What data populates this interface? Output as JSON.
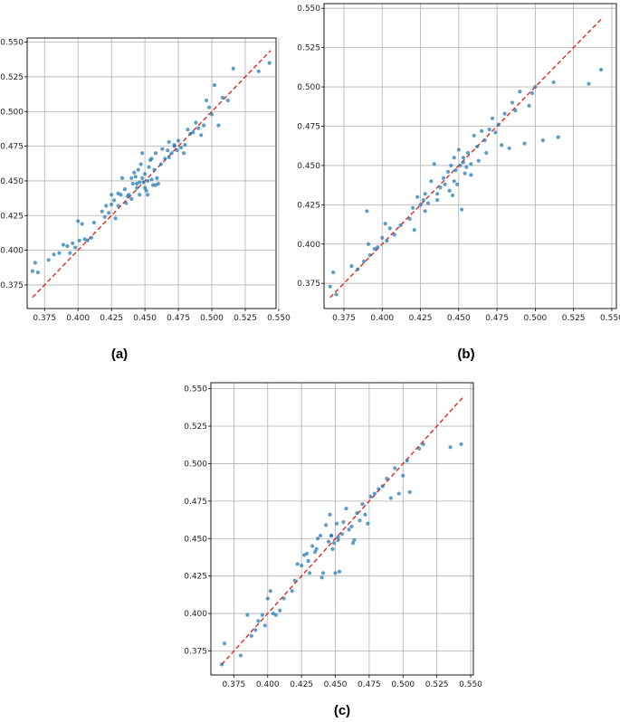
{
  "colors": {
    "points": "#1f77b4",
    "reference_line": "#e8190f",
    "grid": "#b0b0b0"
  },
  "chart_data": [
    {
      "type": "scatter",
      "panel_label": "(a)",
      "xlim": [
        0.362,
        0.548
      ],
      "ylim": [
        0.358,
        0.553
      ],
      "xticks": [
        "0.375",
        "0.400",
        "0.425",
        "0.450",
        "0.475",
        "0.500",
        "0.525",
        "0.550"
      ],
      "yticks": [
        "0.375",
        "0.400",
        "0.425",
        "0.450",
        "0.475",
        "0.500",
        "0.525",
        "0.550"
      ],
      "grid": true,
      "reference_line": {
        "style": "dashed",
        "from": [
          0.366,
          0.366
        ],
        "to": [
          0.544,
          0.544
        ]
      },
      "x": [
        0.366,
        0.368,
        0.37,
        0.378,
        0.382,
        0.386,
        0.389,
        0.392,
        0.394,
        0.396,
        0.398,
        0.4,
        0.401,
        0.403,
        0.405,
        0.407,
        0.41,
        0.412,
        0.418,
        0.42,
        0.421,
        0.423,
        0.425,
        0.427,
        0.428,
        0.43,
        0.432,
        0.433,
        0.435,
        0.437,
        0.438,
        0.44,
        0.441,
        0.442,
        0.443,
        0.444,
        0.445,
        0.446,
        0.447,
        0.448,
        0.448,
        0.449,
        0.45,
        0.451,
        0.452,
        0.453,
        0.454,
        0.455,
        0.456,
        0.457,
        0.458,
        0.459,
        0.46,
        0.462,
        0.463,
        0.465,
        0.467,
        0.468,
        0.47,
        0.472,
        0.474,
        0.475,
        0.477,
        0.479,
        0.48,
        0.482,
        0.484,
        0.486,
        0.488,
        0.49,
        0.492,
        0.494,
        0.496,
        0.498,
        0.5,
        0.502,
        0.505,
        0.508,
        0.512,
        0.516,
        0.535,
        0.543,
        0.446,
        0.45,
        0.455,
        0.44,
        0.436,
        0.468,
        0.472,
        0.43,
        0.444,
        0.458,
        0.452,
        0.425
      ],
      "y": [
        0.385,
        0.391,
        0.384,
        0.393,
        0.397,
        0.398,
        0.404,
        0.403,
        0.398,
        0.405,
        0.402,
        0.421,
        0.407,
        0.419,
        0.408,
        0.407,
        0.409,
        0.42,
        0.428,
        0.424,
        0.432,
        0.427,
        0.44,
        0.436,
        0.423,
        0.441,
        0.44,
        0.452,
        0.444,
        0.439,
        0.44,
        0.452,
        0.448,
        0.456,
        0.453,
        0.445,
        0.458,
        0.449,
        0.462,
        0.47,
        0.452,
        0.449,
        0.455,
        0.443,
        0.45,
        0.46,
        0.465,
        0.451,
        0.447,
        0.458,
        0.47,
        0.452,
        0.448,
        0.462,
        0.473,
        0.466,
        0.472,
        0.478,
        0.47,
        0.475,
        0.472,
        0.479,
        0.474,
        0.47,
        0.476,
        0.487,
        0.484,
        0.485,
        0.492,
        0.488,
        0.483,
        0.49,
        0.508,
        0.503,
        0.498,
        0.519,
        0.49,
        0.51,
        0.508,
        0.531,
        0.529,
        0.535,
        0.44,
        0.445,
        0.466,
        0.437,
        0.434,
        0.467,
        0.476,
        0.432,
        0.448,
        0.447,
        0.44,
        0.433
      ]
    },
    {
      "type": "scatter",
      "panel_label": "(b)",
      "xlim": [
        0.362,
        0.553
      ],
      "ylim": [
        0.359,
        0.553
      ],
      "xticks": [
        "0.375",
        "0.400",
        "0.425",
        "0.450",
        "0.475",
        "0.500",
        "0.525",
        "0.550"
      ],
      "yticks": [
        "0.375",
        "0.400",
        "0.425",
        "0.450",
        "0.475",
        "0.500",
        "0.525",
        "0.550"
      ],
      "grid": true,
      "reference_line": {
        "style": "dashed",
        "from": [
          0.366,
          0.366
        ],
        "to": [
          0.544,
          0.544
        ]
      },
      "x": [
        0.366,
        0.368,
        0.37,
        0.38,
        0.384,
        0.388,
        0.39,
        0.391,
        0.392,
        0.395,
        0.397,
        0.4,
        0.402,
        0.403,
        0.405,
        0.408,
        0.412,
        0.418,
        0.42,
        0.421,
        0.423,
        0.425,
        0.427,
        0.428,
        0.43,
        0.432,
        0.434,
        0.436,
        0.438,
        0.44,
        0.441,
        0.443,
        0.445,
        0.446,
        0.447,
        0.448,
        0.449,
        0.45,
        0.451,
        0.452,
        0.453,
        0.454,
        0.455,
        0.456,
        0.458,
        0.46,
        0.462,
        0.463,
        0.465,
        0.467,
        0.468,
        0.47,
        0.472,
        0.474,
        0.476,
        0.478,
        0.48,
        0.483,
        0.485,
        0.487,
        0.49,
        0.493,
        0.496,
        0.498,
        0.5,
        0.505,
        0.512,
        0.515,
        0.535,
        0.543,
        0.444,
        0.436,
        0.453,
        0.458,
        0.428,
        0.447
      ],
      "y": [
        0.373,
        0.382,
        0.368,
        0.386,
        0.384,
        0.389,
        0.421,
        0.4,
        0.393,
        0.397,
        0.398,
        0.404,
        0.413,
        0.402,
        0.41,
        0.406,
        0.412,
        0.416,
        0.423,
        0.409,
        0.43,
        0.425,
        0.428,
        0.432,
        0.426,
        0.44,
        0.451,
        0.432,
        0.436,
        0.442,
        0.438,
        0.446,
        0.45,
        0.431,
        0.455,
        0.447,
        0.438,
        0.46,
        0.45,
        0.422,
        0.455,
        0.445,
        0.449,
        0.458,
        0.451,
        0.469,
        0.462,
        0.453,
        0.472,
        0.466,
        0.458,
        0.473,
        0.48,
        0.471,
        0.476,
        0.463,
        0.483,
        0.461,
        0.49,
        0.485,
        0.497,
        0.464,
        0.488,
        0.496,
        0.5,
        0.466,
        0.503,
        0.468,
        0.502,
        0.511,
        0.434,
        0.428,
        0.452,
        0.444,
        0.421,
        0.44
      ]
    },
    {
      "type": "scatter",
      "panel_label": "(c)",
      "xlim": [
        0.358,
        0.552
      ],
      "ylim": [
        0.359,
        0.554
      ],
      "xticks": [
        "0.375",
        "0.400",
        "0.425",
        "0.450",
        "0.475",
        "0.500",
        "0.525",
        "0.550"
      ],
      "yticks": [
        "0.375",
        "0.400",
        "0.425",
        "0.450",
        "0.475",
        "0.500",
        "0.525",
        "0.550"
      ],
      "grid": true,
      "reference_line": {
        "style": "dashed",
        "from": [
          0.366,
          0.366
        ],
        "to": [
          0.544,
          0.544
        ]
      },
      "x": [
        0.366,
        0.368,
        0.38,
        0.385,
        0.388,
        0.391,
        0.393,
        0.396,
        0.398,
        0.4,
        0.402,
        0.404,
        0.406,
        0.409,
        0.412,
        0.418,
        0.42,
        0.422,
        0.425,
        0.427,
        0.429,
        0.431,
        0.433,
        0.435,
        0.437,
        0.439,
        0.441,
        0.443,
        0.445,
        0.446,
        0.447,
        0.448,
        0.449,
        0.45,
        0.451,
        0.452,
        0.453,
        0.455,
        0.456,
        0.458,
        0.46,
        0.462,
        0.464,
        0.466,
        0.468,
        0.47,
        0.472,
        0.474,
        0.476,
        0.479,
        0.482,
        0.485,
        0.488,
        0.491,
        0.494,
        0.497,
        0.5,
        0.503,
        0.505,
        0.512,
        0.515,
        0.535,
        0.543,
        0.44,
        0.436,
        0.452,
        0.463,
        0.43,
        0.447
      ],
      "y": [
        0.366,
        0.38,
        0.372,
        0.399,
        0.385,
        0.389,
        0.395,
        0.399,
        0.392,
        0.41,
        0.415,
        0.4,
        0.399,
        0.402,
        0.41,
        0.415,
        0.422,
        0.433,
        0.432,
        0.439,
        0.44,
        0.427,
        0.445,
        0.441,
        0.45,
        0.452,
        0.427,
        0.459,
        0.448,
        0.466,
        0.452,
        0.443,
        0.447,
        0.427,
        0.46,
        0.449,
        0.428,
        0.453,
        0.461,
        0.47,
        0.456,
        0.458,
        0.449,
        0.467,
        0.462,
        0.473,
        0.466,
        0.46,
        0.478,
        0.48,
        0.483,
        0.485,
        0.49,
        0.477,
        0.497,
        0.48,
        0.492,
        0.502,
        0.481,
        0.51,
        0.513,
        0.511,
        0.513,
        0.424,
        0.443,
        0.451,
        0.447,
        0.435,
        0.452
      ]
    }
  ]
}
